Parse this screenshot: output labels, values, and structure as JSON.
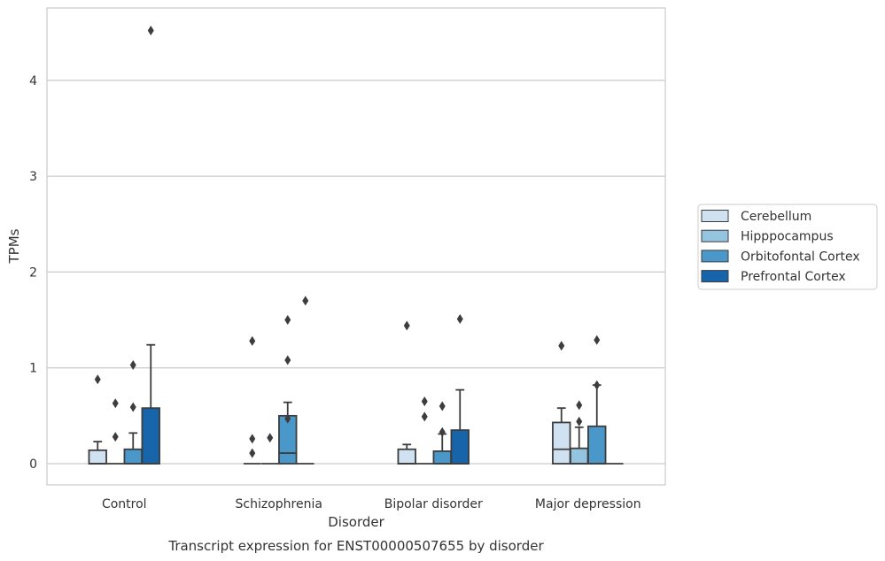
{
  "chart_data": {
    "type": "boxplot",
    "title": "",
    "caption": "Transcript expression for ENST00000507655 by disorder",
    "xlabel": "Disorder",
    "ylabel": "TPMs",
    "ylim": [
      -0.22,
      4.75
    ],
    "yticks": [
      0,
      1,
      2,
      3,
      4
    ],
    "grid": "horizontal",
    "legend_position": "right",
    "categories": [
      "Control",
      "Schizophrenia",
      "Bipolar disorder",
      "Major depression"
    ],
    "series": [
      {
        "name": "Cerebellum",
        "color": "#d0e1f2",
        "boxes": [
          {
            "q1": 0,
            "median": 0,
            "q3": 0.14,
            "whisker_low": 0,
            "whisker_high": 0.23,
            "outliers": [
              0.88
            ]
          },
          {
            "q1": 0,
            "median": 0,
            "q3": 0,
            "whisker_low": 0,
            "whisker_high": 0,
            "outliers": [
              0.11,
              0.26,
              1.28
            ]
          },
          {
            "q1": 0,
            "median": 0,
            "q3": 0.15,
            "whisker_low": 0,
            "whisker_high": 0.2,
            "outliers": [
              1.44
            ]
          },
          {
            "q1": 0,
            "median": 0.15,
            "q3": 0.43,
            "whisker_low": 0,
            "whisker_high": 0.58,
            "outliers": [
              1.23
            ]
          }
        ]
      },
      {
        "name": "Hipppocampus",
        "color": "#94c4df",
        "boxes": [
          {
            "q1": 0,
            "median": 0,
            "q3": 0,
            "whisker_low": 0,
            "whisker_high": 0,
            "outliers": [
              0.28,
              0.63
            ]
          },
          {
            "q1": 0,
            "median": 0,
            "q3": 0,
            "whisker_low": 0,
            "whisker_high": 0,
            "outliers": [
              0.27
            ]
          },
          {
            "q1": 0,
            "median": 0,
            "q3": 0,
            "whisker_low": 0,
            "whisker_high": 0,
            "outliers": [
              0.49,
              0.65
            ]
          },
          {
            "q1": 0,
            "median": 0,
            "q3": 0.16,
            "whisker_low": 0,
            "whisker_high": 0.38,
            "outliers": [
              0.44,
              0.61
            ]
          }
        ]
      },
      {
        "name": "Orbitofontal Cortex",
        "color": "#4a98c9",
        "boxes": [
          {
            "q1": 0,
            "median": 0,
            "q3": 0.15,
            "whisker_low": 0,
            "whisker_high": 0.32,
            "outliers": [
              0.59,
              1.03
            ]
          },
          {
            "q1": 0,
            "median": 0.11,
            "q3": 0.5,
            "whisker_low": 0,
            "whisker_high": 0.64,
            "outliers": [
              0.47,
              1.08,
              1.5
            ]
          },
          {
            "q1": 0,
            "median": 0,
            "q3": 0.13,
            "whisker_low": 0,
            "whisker_high": 0.31,
            "outliers": [
              0.33,
              0.6
            ]
          },
          {
            "q1": 0,
            "median": 0,
            "q3": 0.39,
            "whisker_low": 0,
            "whisker_high": 0.82,
            "outliers": [
              0.82,
              1.29
            ]
          }
        ]
      },
      {
        "name": "Prefrontal Cortex",
        "color": "#1764ab",
        "boxes": [
          {
            "q1": 0,
            "median": 0,
            "q3": 0.58,
            "whisker_low": 0,
            "whisker_high": 1.24,
            "outliers": [
              4.52
            ]
          },
          {
            "q1": 0,
            "median": 0,
            "q3": 0,
            "whisker_low": 0,
            "whisker_high": 0,
            "outliers": [
              1.7
            ]
          },
          {
            "q1": 0,
            "median": 0,
            "q3": 0.35,
            "whisker_low": 0,
            "whisker_high": 0.77,
            "outliers": [
              1.51
            ]
          },
          {
            "q1": 0,
            "median": 0,
            "q3": 0,
            "whisker_low": 0,
            "whisker_high": 0,
            "outliers": []
          }
        ]
      }
    ]
  }
}
